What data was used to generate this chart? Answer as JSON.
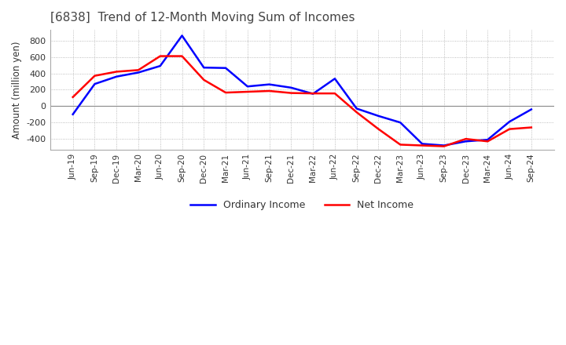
{
  "title": "[6838]  Trend of 12-Month Moving Sum of Incomes",
  "ylabel": "Amount (million yen)",
  "ylim": [
    -530,
    930
  ],
  "yticks": [
    -400,
    -200,
    0,
    200,
    400,
    600,
    800
  ],
  "background_color": "#ffffff",
  "grid_color": "#aaaaaa",
  "ordinary_income_color": "#0000ff",
  "net_income_color": "#ff0000",
  "x_labels": [
    "Jun-19",
    "Sep-19",
    "Dec-19",
    "Mar-20",
    "Jun-20",
    "Sep-20",
    "Dec-20",
    "Mar-21",
    "Jun-21",
    "Sep-21",
    "Dec-21",
    "Mar-22",
    "Jun-22",
    "Sep-22",
    "Dec-22",
    "Mar-23",
    "Jun-23",
    "Sep-23",
    "Dec-23",
    "Mar-24",
    "Jun-24",
    "Sep-24"
  ],
  "ordinary_income": [
    -100,
    270,
    360,
    410,
    490,
    860,
    470,
    465,
    240,
    265,
    225,
    150,
    335,
    -30,
    -120,
    -200,
    -460,
    -480,
    -430,
    -410,
    -190,
    -40
  ],
  "net_income": [
    110,
    370,
    420,
    440,
    610,
    610,
    320,
    165,
    175,
    185,
    160,
    155,
    155,
    -75,
    -280,
    -470,
    -480,
    -490,
    -400,
    -430,
    -280,
    -260
  ]
}
